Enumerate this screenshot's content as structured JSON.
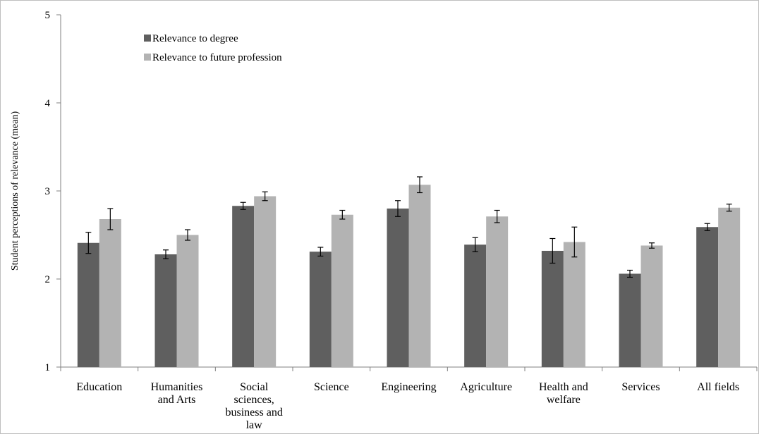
{
  "chart_data": {
    "type": "bar",
    "ylabel": "Student perceptions of relevance (mean)",
    "ylim": [
      1,
      5
    ],
    "yticks": [
      1,
      2,
      3,
      4,
      5
    ],
    "categories": [
      [
        "Education"
      ],
      [
        "Humanities",
        "and Arts"
      ],
      [
        "Social",
        "sciences,",
        "business and",
        "law"
      ],
      [
        "Science"
      ],
      [
        "Engineering"
      ],
      [
        "Agriculture"
      ],
      [
        "Health and",
        "welfare"
      ],
      [
        "Services"
      ],
      [
        "All fields"
      ]
    ],
    "series": [
      {
        "name": "Relevance to degree",
        "color": "#5f5f5f",
        "values": [
          2.41,
          2.28,
          2.83,
          2.31,
          2.8,
          2.39,
          2.32,
          2.06,
          2.59
        ],
        "error": [
          0.12,
          0.05,
          0.04,
          0.05,
          0.09,
          0.08,
          0.14,
          0.04,
          0.04
        ]
      },
      {
        "name": "Relevance to future profession",
        "color": "#b3b3b3",
        "values": [
          2.68,
          2.5,
          2.94,
          2.73,
          3.07,
          2.71,
          2.42,
          2.38,
          2.81
        ],
        "error": [
          0.12,
          0.06,
          0.05,
          0.05,
          0.09,
          0.07,
          0.17,
          0.03,
          0.04
        ]
      }
    ],
    "grid": false,
    "legend_position": "top-left"
  }
}
